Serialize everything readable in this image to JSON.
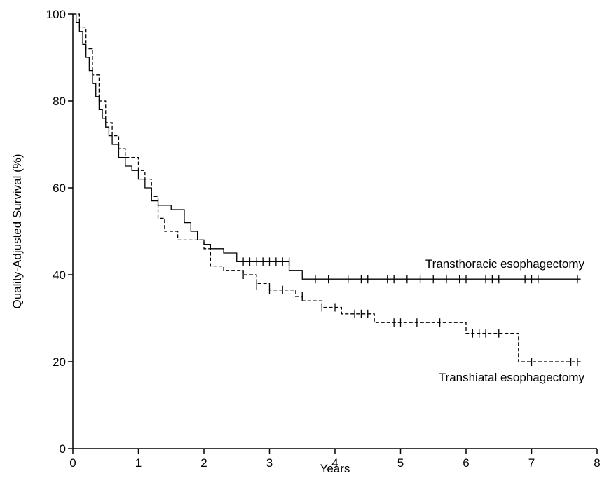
{
  "chart_data": {
    "type": "km",
    "x_label": "Years",
    "y_label": "Quality-Adjusted Survival (%)",
    "xlim": [
      0,
      8
    ],
    "xticks": [
      0,
      1,
      2,
      3,
      4,
      5,
      6,
      7,
      8
    ],
    "ylim": [
      0,
      100
    ],
    "yticks": [
      0,
      20,
      40,
      60,
      80,
      100
    ],
    "step": true,
    "series": [
      {
        "name": "Transthoracic esophagectomy",
        "color": "#000000",
        "dash": "solid",
        "x": [
          0,
          0.05,
          0.1,
          0.15,
          0.2,
          0.25,
          0.3,
          0.35,
          0.4,
          0.45,
          0.5,
          0.55,
          0.6,
          0.7,
          0.8,
          0.9,
          1.0,
          1.1,
          1.2,
          1.3,
          1.5,
          1.7,
          1.8,
          1.9,
          2.0,
          2.1,
          2.3,
          2.5,
          3.3,
          3.5,
          7.75
        ],
        "values": [
          100,
          98,
          96,
          93,
          90,
          87,
          84,
          81,
          78,
          76,
          74,
          72,
          70,
          67,
          65,
          64,
          62,
          60,
          57,
          56,
          55,
          52,
          50,
          48,
          47,
          46,
          45,
          43,
          41,
          39,
          39
        ],
        "censored": {
          "x": [
            2.6,
            2.7,
            2.8,
            2.9,
            3.0,
            3.1,
            3.2,
            3.3,
            3.7,
            3.9,
            4.2,
            4.4,
            4.5,
            4.8,
            4.9,
            5.1,
            5.3,
            5.5,
            5.7,
            5.9,
            6.0,
            6.3,
            6.4,
            6.5,
            6.9,
            7.0,
            7.1,
            7.7
          ],
          "values": [
            43,
            43,
            43,
            43,
            43,
            43,
            43,
            43,
            39,
            39,
            39,
            39,
            39,
            39,
            39,
            39,
            39,
            39,
            39,
            39,
            39,
            39,
            39,
            39,
            39,
            39,
            39,
            39
          ]
        }
      },
      {
        "name": "Transhiatal esophagectomy",
        "color": "#000000",
        "dash": "dashed",
        "x": [
          0,
          0.1,
          0.2,
          0.3,
          0.4,
          0.5,
          0.6,
          0.7,
          0.8,
          1.0,
          1.1,
          1.2,
          1.3,
          1.4,
          1.6,
          2.0,
          2.1,
          2.3,
          2.6,
          2.8,
          3.0,
          3.4,
          3.5,
          3.8,
          4.1,
          4.6,
          6.0,
          6.8,
          7.75
        ],
        "values": [
          100,
          97,
          92,
          86,
          80,
          75,
          72,
          69,
          67,
          64,
          62,
          58,
          53,
          50,
          48,
          46,
          42,
          41,
          40,
          38,
          36.5,
          35,
          34,
          32.5,
          31,
          29,
          26.5,
          20,
          20
        ],
        "censored": {
          "x": [
            2.6,
            2.8,
            3.0,
            3.2,
            3.5,
            3.8,
            4.0,
            4.3,
            4.4,
            4.5,
            4.9,
            5.0,
            5.25,
            5.6,
            6.1,
            6.2,
            6.3,
            6.5,
            7.0,
            7.6,
            7.7
          ],
          "values": [
            40,
            37.5,
            36.5,
            36.5,
            35,
            32.5,
            32.5,
            31,
            31,
            31,
            29,
            29,
            29,
            29,
            26.5,
            26.5,
            26.5,
            26.5,
            20,
            20,
            20
          ]
        }
      }
    ]
  }
}
